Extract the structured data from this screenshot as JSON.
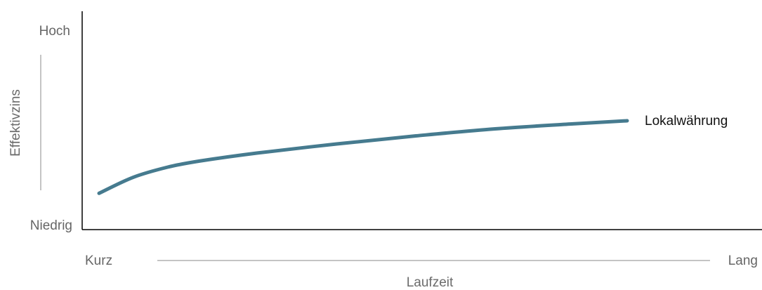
{
  "chart_data": {
    "type": "line",
    "title": "",
    "xlabel": "Laufzeit",
    "ylabel": "Effektivzins",
    "x_tick_labels": {
      "min": "Kurz",
      "max": "Lang"
    },
    "y_tick_labels": {
      "min": "Niedrig",
      "max": "Hoch"
    },
    "xlim": [
      0,
      1
    ],
    "ylim": [
      0,
      1
    ],
    "grid": false,
    "legend": "none",
    "series": [
      {
        "name": "Lokalwährung",
        "color": "#467b8f",
        "x": [
          0.0,
          0.065,
          0.13,
          0.19,
          0.3,
          0.45,
          0.6,
          0.75,
          0.9,
          1.0
        ],
        "y": [
          0.18,
          0.26,
          0.31,
          0.34,
          0.38,
          0.425,
          0.465,
          0.5,
          0.525,
          0.54
        ]
      }
    ],
    "annotations": [
      {
        "text": "Lokalwährung",
        "attached_to": "series-end"
      }
    ]
  }
}
